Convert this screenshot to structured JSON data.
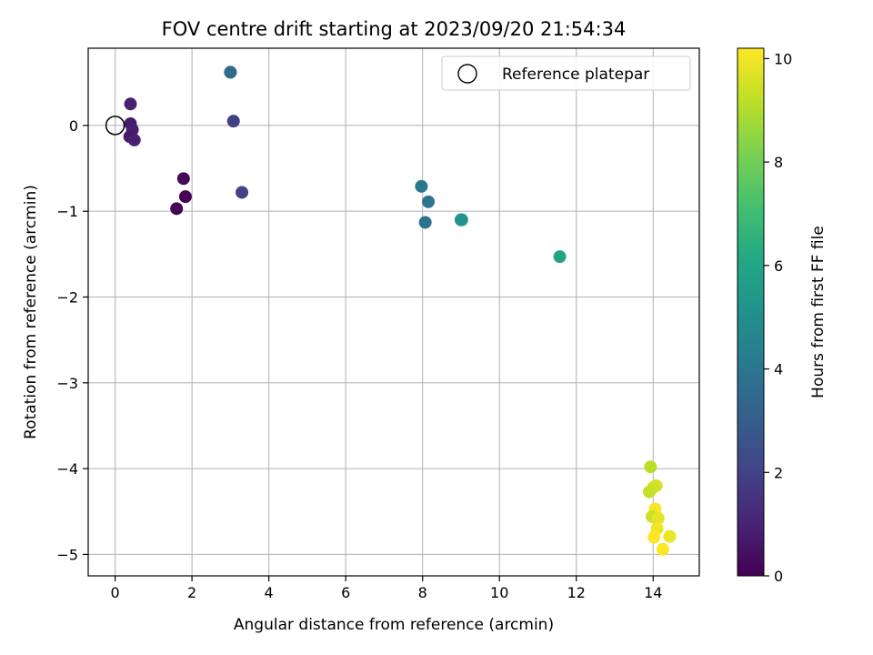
{
  "chart_data": {
    "type": "scatter",
    "title": "FOV centre drift starting at 2023/09/20 21:54:34",
    "xlabel": "Angular distance from reference (arcmin)",
    "ylabel": "Rotation from reference (arcmin)",
    "xlim": [
      -0.7,
      15.2
    ],
    "ylim": [
      -5.25,
      0.9
    ],
    "xticks": [
      0,
      2,
      4,
      6,
      8,
      10,
      12,
      14
    ],
    "yticks": [
      0,
      -1,
      -2,
      -3,
      -4,
      -5
    ],
    "xtick_labels": [
      "0",
      "2",
      "4",
      "6",
      "8",
      "10",
      "12",
      "14"
    ],
    "ytick_labels": [
      "0",
      "−1",
      "−2",
      "−3",
      "−4",
      "−5"
    ],
    "grid": true,
    "legend": {
      "label": "Reference platepar",
      "placement": "top-right",
      "marker": "open-circle"
    },
    "reference_point": {
      "x": 0,
      "y": 0
    },
    "colorbar": {
      "label": "Hours from first FF file",
      "range": [
        0,
        10.2
      ],
      "ticks": [
        0,
        2,
        4,
        6,
        8,
        10
      ],
      "tick_labels": [
        "0",
        "2",
        "4",
        "6",
        "8",
        "10"
      ],
      "colormap": "viridis"
    },
    "points": [
      {
        "x": 0.4,
        "y": 0.25,
        "hours": 1.0
      },
      {
        "x": 0.4,
        "y": 0.02,
        "hours": 0.8
      },
      {
        "x": 0.45,
        "y": -0.05,
        "hours": 0.9
      },
      {
        "x": 0.38,
        "y": -0.13,
        "hours": 0.7
      },
      {
        "x": 0.5,
        "y": -0.17,
        "hours": 0.9
      },
      {
        "x": 1.78,
        "y": -0.62,
        "hours": 0.2
      },
      {
        "x": 1.83,
        "y": -0.83,
        "hours": 0.1
      },
      {
        "x": 1.6,
        "y": -0.97,
        "hours": 0.1
      },
      {
        "x": 3.0,
        "y": 0.62,
        "hours": 3.8
      },
      {
        "x": 3.0,
        "y": 0.62,
        "hours": 3.6
      },
      {
        "x": 3.08,
        "y": 0.05,
        "hours": 1.9
      },
      {
        "x": 3.3,
        "y": -0.78,
        "hours": 2.0
      },
      {
        "x": 7.97,
        "y": -0.71,
        "hours": 4.1
      },
      {
        "x": 8.15,
        "y": -0.89,
        "hours": 4.0
      },
      {
        "x": 8.07,
        "y": -1.13,
        "hours": 3.9
      },
      {
        "x": 9.0,
        "y": -1.1,
        "hours": 5.0
      },
      {
        "x": 9.02,
        "y": -1.1,
        "hours": 5.2
      },
      {
        "x": 11.57,
        "y": -1.53,
        "hours": 5.9
      },
      {
        "x": 13.93,
        "y": -3.98,
        "hours": 9.1
      },
      {
        "x": 14.08,
        "y": -4.2,
        "hours": 9.6
      },
      {
        "x": 14.0,
        "y": -4.22,
        "hours": 9.5
      },
      {
        "x": 13.9,
        "y": -4.27,
        "hours": 9.3
      },
      {
        "x": 14.05,
        "y": -4.47,
        "hours": 10.1
      },
      {
        "x": 13.97,
        "y": -4.56,
        "hours": 9.4
      },
      {
        "x": 14.13,
        "y": -4.58,
        "hours": 9.8
      },
      {
        "x": 14.1,
        "y": -4.7,
        "hours": 10.0
      },
      {
        "x": 14.02,
        "y": -4.8,
        "hours": 10.2
      },
      {
        "x": 14.43,
        "y": -4.79,
        "hours": 9.9
      },
      {
        "x": 14.25,
        "y": -4.94,
        "hours": 10.2
      }
    ]
  }
}
